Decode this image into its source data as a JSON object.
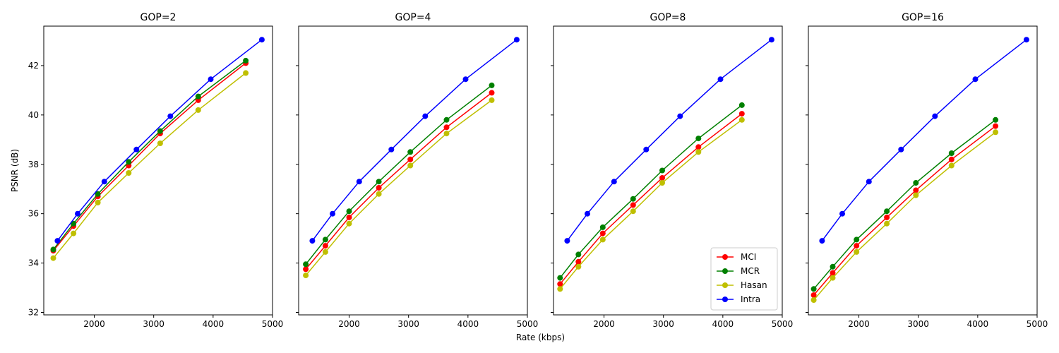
{
  "chart_data": {
    "type": "line",
    "xlabel": "Rate (kbps)",
    "ylabel": "PSNR (dB)",
    "xlim": [
      1150,
      5000
    ],
    "ylim": [
      31.9,
      43.6
    ],
    "xticks": [
      2000,
      3000,
      4000,
      5000
    ],
    "yticks": [
      32,
      34,
      36,
      38,
      40,
      42
    ],
    "grid": false,
    "legend_placement": "lower-right",
    "legend_panel": 2,
    "legend": [
      {
        "name": "MCI",
        "color": "#ff0000"
      },
      {
        "name": "MCR",
        "color": "#008000"
      },
      {
        "name": "Hasan",
        "color": "#bfbf00"
      },
      {
        "name": "Intra",
        "color": "#0000ff"
      }
    ],
    "panels": [
      {
        "title": "GOP=2",
        "series": [
          {
            "name": "MCI",
            "color": "#ff0000",
            "x": [
              1310,
              1650,
              2060,
              2580,
              3110,
              3750,
              4550
            ],
            "y": [
              34.5,
              35.5,
              36.7,
              37.95,
              39.25,
              40.6,
              42.1
            ]
          },
          {
            "name": "MCR",
            "color": "#008000",
            "x": [
              1310,
              1650,
              2060,
              2580,
              3110,
              3750,
              4550
            ],
            "y": [
              34.55,
              35.6,
              36.8,
              38.1,
              39.35,
              40.75,
              42.2
            ]
          },
          {
            "name": "Hasan",
            "color": "#bfbf00",
            "x": [
              1310,
              1650,
              2060,
              2580,
              3110,
              3750,
              4550
            ],
            "y": [
              34.2,
              35.2,
              36.45,
              37.65,
              38.85,
              40.2,
              41.7
            ]
          },
          {
            "name": "Intra",
            "color": "#0000ff",
            "x": [
              1380,
              1720,
              2170,
              2710,
              3280,
              3960,
              4820
            ],
            "y": [
              34.9,
              36.0,
              37.3,
              38.6,
              39.95,
              41.45,
              43.05
            ]
          }
        ]
      },
      {
        "title": "GOP=4",
        "series": [
          {
            "name": "MCI",
            "color": "#ff0000",
            "x": [
              1270,
              1600,
              2000,
              2500,
              3030,
              3640,
              4400
            ],
            "y": [
              33.75,
              34.7,
              35.85,
              37.05,
              38.2,
              39.5,
              40.9
            ]
          },
          {
            "name": "MCR",
            "color": "#008000",
            "x": [
              1270,
              1600,
              2000,
              2500,
              3030,
              3640,
              4400
            ],
            "y": [
              33.95,
              34.95,
              36.1,
              37.3,
              38.5,
              39.8,
              41.2
            ]
          },
          {
            "name": "Hasan",
            "color": "#bfbf00",
            "x": [
              1270,
              1600,
              2000,
              2500,
              3030,
              3640,
              4400
            ],
            "y": [
              33.5,
              34.45,
              35.6,
              36.8,
              37.95,
              39.25,
              40.6
            ]
          },
          {
            "name": "Intra",
            "color": "#0000ff",
            "x": [
              1380,
              1720,
              2170,
              2710,
              3280,
              3960,
              4820
            ],
            "y": [
              34.9,
              36.0,
              37.3,
              38.6,
              39.95,
              41.45,
              43.05
            ]
          }
        ]
      },
      {
        "title": "GOP=8",
        "series": [
          {
            "name": "MCI",
            "color": "#ff0000",
            "x": [
              1260,
              1570,
              1980,
              2490,
              2980,
              3590,
              4320
            ],
            "y": [
              33.15,
              34.05,
              35.2,
              36.35,
              37.45,
              38.7,
              40.05
            ]
          },
          {
            "name": "MCR",
            "color": "#008000",
            "x": [
              1260,
              1570,
              1980,
              2490,
              2980,
              3590,
              4320
            ],
            "y": [
              33.4,
              34.35,
              35.45,
              36.6,
              37.75,
              39.05,
              40.4
            ]
          },
          {
            "name": "Hasan",
            "color": "#bfbf00",
            "x": [
              1260,
              1570,
              1980,
              2490,
              2980,
              3590,
              4320
            ],
            "y": [
              32.95,
              33.85,
              34.95,
              36.1,
              37.25,
              38.5,
              39.8
            ]
          },
          {
            "name": "Intra",
            "color": "#0000ff",
            "x": [
              1380,
              1720,
              2170,
              2710,
              3280,
              3960,
              4820
            ],
            "y": [
              34.9,
              36.0,
              37.3,
              38.6,
              39.95,
              41.45,
              43.05
            ]
          }
        ]
      },
      {
        "title": "GOP=16",
        "series": [
          {
            "name": "MCI",
            "color": "#ff0000",
            "x": [
              1240,
              1560,
              1960,
              2470,
              2960,
              3560,
              4300
            ],
            "y": [
              32.7,
              33.6,
              34.7,
              35.85,
              36.95,
              38.2,
              39.55
            ]
          },
          {
            "name": "MCR",
            "color": "#008000",
            "x": [
              1240,
              1560,
              1960,
              2470,
              2960,
              3560,
              4300
            ],
            "y": [
              32.95,
              33.85,
              34.95,
              36.1,
              37.25,
              38.45,
              39.8
            ]
          },
          {
            "name": "Hasan",
            "color": "#bfbf00",
            "x": [
              1240,
              1560,
              1960,
              2470,
              2960,
              3560,
              4300
            ],
            "y": [
              32.5,
              33.4,
              34.45,
              35.6,
              36.75,
              37.95,
              39.3
            ]
          },
          {
            "name": "Intra",
            "color": "#0000ff",
            "x": [
              1380,
              1720,
              2170,
              2710,
              3280,
              3960,
              4820
            ],
            "y": [
              34.9,
              36.0,
              37.3,
              38.6,
              39.95,
              41.45,
              43.05
            ]
          }
        ]
      }
    ]
  }
}
